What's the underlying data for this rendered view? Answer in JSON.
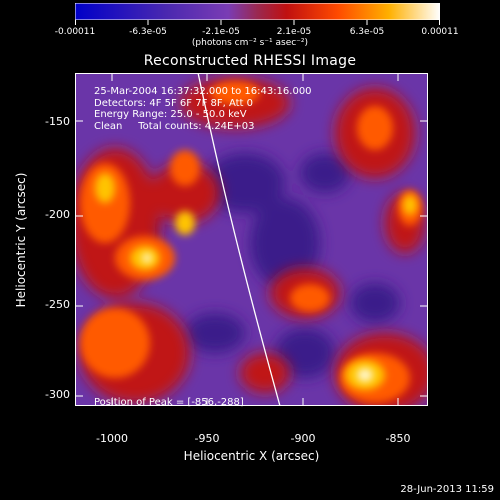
{
  "colorbar": {
    "tick_labels": [
      "-0.00011",
      "-6.3e-05",
      "-2.1e-05",
      "2.1e-05",
      "6.3e-05",
      "0.00011"
    ],
    "units": "(photons cm⁻² s⁻¹ asec⁻²)",
    "colors": [
      "#0000c8",
      "#5a2aa0",
      "#7a3cb4",
      "#b01818",
      "#ff5000",
      "#ffb400",
      "#ffffe0"
    ]
  },
  "title": "Reconstructed RHESSI Image",
  "annotation": {
    "line1": "25-Mar-2004 16:37:32.000 to 16:43:16.000",
    "line2": "Detectors: 4F 5F 6F 7F 8F, Att 0",
    "line3": "Energy Range: 25.0 - 50.0 keV",
    "line4": "Clean     Total counts: 4.24E+03"
  },
  "peak_text": "Position of Peak = [-856,-288]",
  "axes": {
    "xlabel": "Heliocentric X (arcsec)",
    "ylabel": "Heliocentric Y (arcsec)",
    "xticks": [
      "-1000",
      "-950",
      "-900",
      "-850"
    ],
    "yticks": [
      "-150",
      "-200",
      "-250",
      "-300"
    ]
  },
  "footer_timestamp": "28-Jun-2013 11:59"
}
